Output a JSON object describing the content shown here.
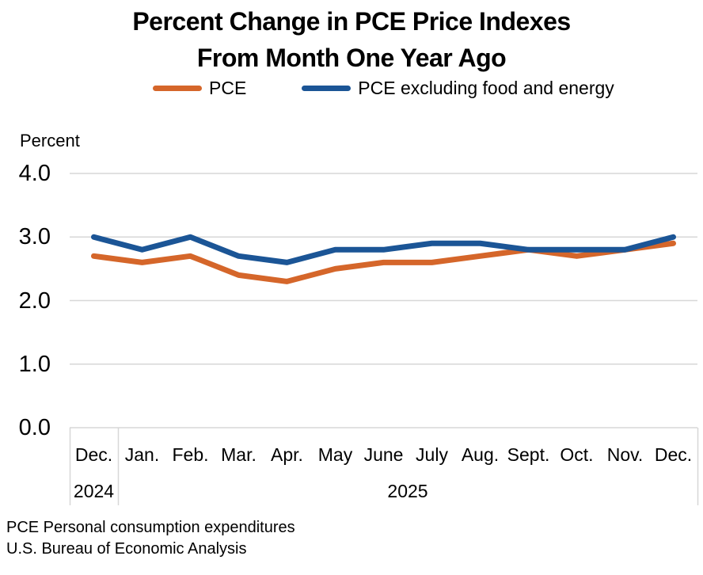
{
  "title": {
    "line1": "Percent Change in PCE Price Indexes",
    "line2": "From Month One Year Ago"
  },
  "legend": {
    "items": [
      {
        "label": "PCE",
        "color": "#D5662A"
      },
      {
        "label": "PCE excluding food and energy",
        "color": "#1B5596"
      }
    ]
  },
  "axis": {
    "unit_label": "Percent",
    "ytick_labels": [
      "0.0",
      "1.0",
      "2.0",
      "3.0",
      "4.0"
    ],
    "year_labels": {
      "first": "2024",
      "second": "2025"
    }
  },
  "footer": {
    "line1": "PCE Personal consumption expenditures",
    "line2": "U.S. Bureau of Economic Analysis"
  },
  "chart_data": {
    "type": "line",
    "title": "Percent Change in PCE Price Indexes From Month One Year Ago",
    "ylabel": "Percent",
    "ylim": [
      0.0,
      4.0
    ],
    "yticks": [
      0.0,
      1.0,
      2.0,
      3.0,
      4.0
    ],
    "grid": true,
    "grid_color": "#D7D7D7",
    "legend_position": "top",
    "categories": [
      "Dec.",
      "Jan.",
      "Feb.",
      "Mar.",
      "Apr.",
      "May",
      "June",
      "July",
      "Aug.",
      "Sept.",
      "Oct.",
      "Nov.",
      "Dec."
    ],
    "year_groups": [
      {
        "label": "2024",
        "start_index": 0,
        "end_index": 0
      },
      {
        "label": "2025",
        "start_index": 1,
        "end_index": 12
      }
    ],
    "series": [
      {
        "name": "PCE",
        "color": "#D5662A",
        "values": [
          2.7,
          2.6,
          2.7,
          2.4,
          2.3,
          2.5,
          2.6,
          2.6,
          2.7,
          2.8,
          2.7,
          2.8,
          2.9
        ]
      },
      {
        "name": "PCE excluding food and energy",
        "color": "#1B5596",
        "values": [
          3.0,
          2.8,
          3.0,
          2.7,
          2.6,
          2.8,
          2.8,
          2.9,
          2.9,
          2.8,
          2.8,
          2.8,
          3.0
        ]
      }
    ]
  }
}
